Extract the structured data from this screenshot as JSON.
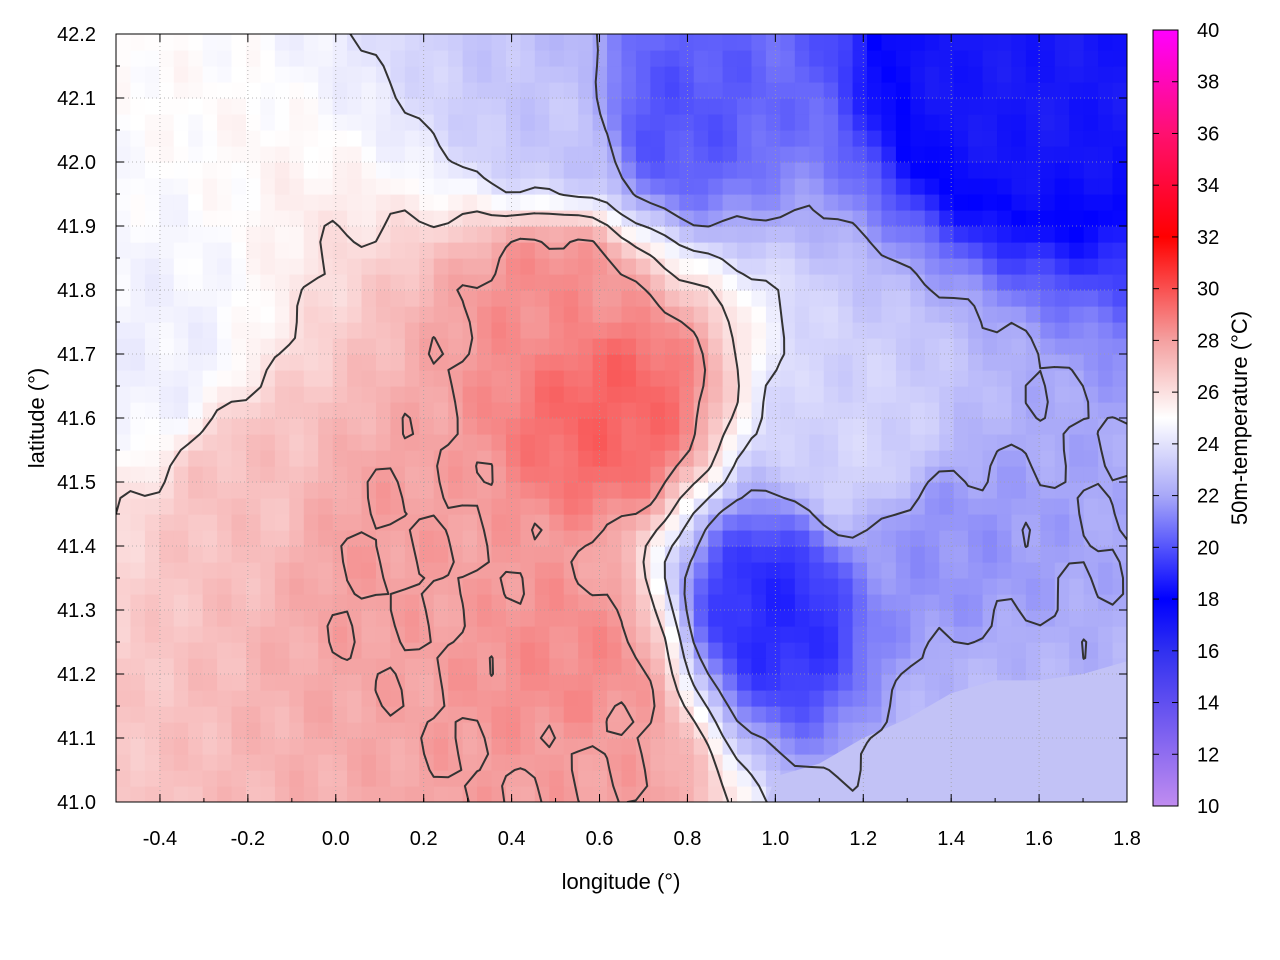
{
  "chart_data": {
    "type": "heatmap",
    "title": "",
    "xlabel": "longitude (°)",
    "ylabel": "latitude (°)",
    "colorbar_label": "50m-temperature (°C)",
    "xlim": [
      -0.5,
      1.8
    ],
    "ylim": [
      41.0,
      42.2
    ],
    "x_ticks": [
      "-0.4",
      "-0.2",
      "0.0",
      "0.2",
      "0.4",
      "0.6",
      "0.8",
      "1.0",
      "1.2",
      "1.4",
      "1.6",
      "1.8"
    ],
    "y_ticks": [
      "41.0",
      "41.1",
      "41.2",
      "41.3",
      "41.4",
      "41.5",
      "41.6",
      "41.7",
      "41.8",
      "41.9",
      "42.0",
      "42.1",
      "42.2"
    ],
    "colorbar_range": [
      10,
      40
    ],
    "colorbar_ticks": [
      "10",
      "12",
      "14",
      "16",
      "18",
      "20",
      "22",
      "24",
      "26",
      "28",
      "30",
      "32",
      "34",
      "36",
      "38",
      "40"
    ],
    "colormap": [
      {
        "value": 10,
        "color": "#c08cf0"
      },
      {
        "value": 16,
        "color": "#3030f0"
      },
      {
        "value": 18,
        "color": "#0000ff"
      },
      {
        "value": 22,
        "color": "#a8a8f8"
      },
      {
        "value": 25,
        "color": "#ffffff"
      },
      {
        "value": 28,
        "color": "#f4a0a0"
      },
      {
        "value": 32,
        "color": "#ff0000"
      },
      {
        "value": 36,
        "color": "#ff1070"
      },
      {
        "value": 40,
        "color": "#ff00ff"
      }
    ],
    "grid": true,
    "contour_color": "#333333",
    "field_description_hotspots": [
      {
        "lon": 0.62,
        "lat": 41.62,
        "temp": 29.5
      },
      {
        "lon": 0.5,
        "lat": 41.8,
        "temp": 28.5
      },
      {
        "lon": 0.1,
        "lat": 41.4,
        "temp": 28.0
      },
      {
        "lon": 0.55,
        "lat": 41.2,
        "temp": 28.5
      },
      {
        "lon": -0.2,
        "lat": 41.5,
        "temp": 27.0
      },
      {
        "lon": 0.6,
        "lat": 41.05,
        "temp": 28.0
      },
      {
        "lon": 1.55,
        "lat": 42.15,
        "temp": 17.0
      },
      {
        "lon": 1.0,
        "lat": 41.3,
        "temp": 19.0
      },
      {
        "lon": 0.75,
        "lat": 42.07,
        "temp": 20.0
      },
      {
        "lon": 1.35,
        "lat": 41.4,
        "temp": 21.5
      },
      {
        "lon": 1.45,
        "lat": 41.1,
        "temp": 22.5
      },
      {
        "lon": 1.2,
        "lat": 41.55,
        "temp": 23.5
      },
      {
        "lon": 0.5,
        "lat": 42.05,
        "temp": 23.0
      },
      {
        "lon": -0.4,
        "lat": 41.68,
        "temp": 24.5
      }
    ]
  }
}
